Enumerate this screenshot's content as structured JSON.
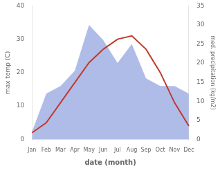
{
  "chart_data": {
    "type": "line",
    "categories": [
      "Jan",
      "Feb",
      "Mar",
      "Apr",
      "May",
      "Jun",
      "Jul",
      "Aug",
      "Sep",
      "Oct",
      "Nov",
      "Dec"
    ],
    "xlabel": "date (month)",
    "ylabel": "max temp (C)",
    "y2label": "med. precipitation (kg/m2)",
    "series": [
      {
        "type": "area",
        "axis": "y2",
        "color": "#b0bce8",
        "values": [
          2,
          12,
          14,
          18,
          30,
          26,
          20,
          25,
          16,
          14,
          14,
          12
        ]
      },
      {
        "type": "line",
        "color": "#c0392b",
        "values": [
          2,
          5,
          11,
          17,
          23,
          27,
          30,
          31,
          27,
          20,
          11,
          4
        ]
      }
    ],
    "ylim": [
      0,
      40
    ],
    "yticks": [
      0,
      10,
      20,
      30,
      40
    ],
    "y2lim": [
      0,
      35
    ],
    "y2ticks": [
      0,
      5,
      10,
      15,
      20,
      25,
      30,
      35
    ],
    "grid": false,
    "bg_color": "#ffffff"
  }
}
